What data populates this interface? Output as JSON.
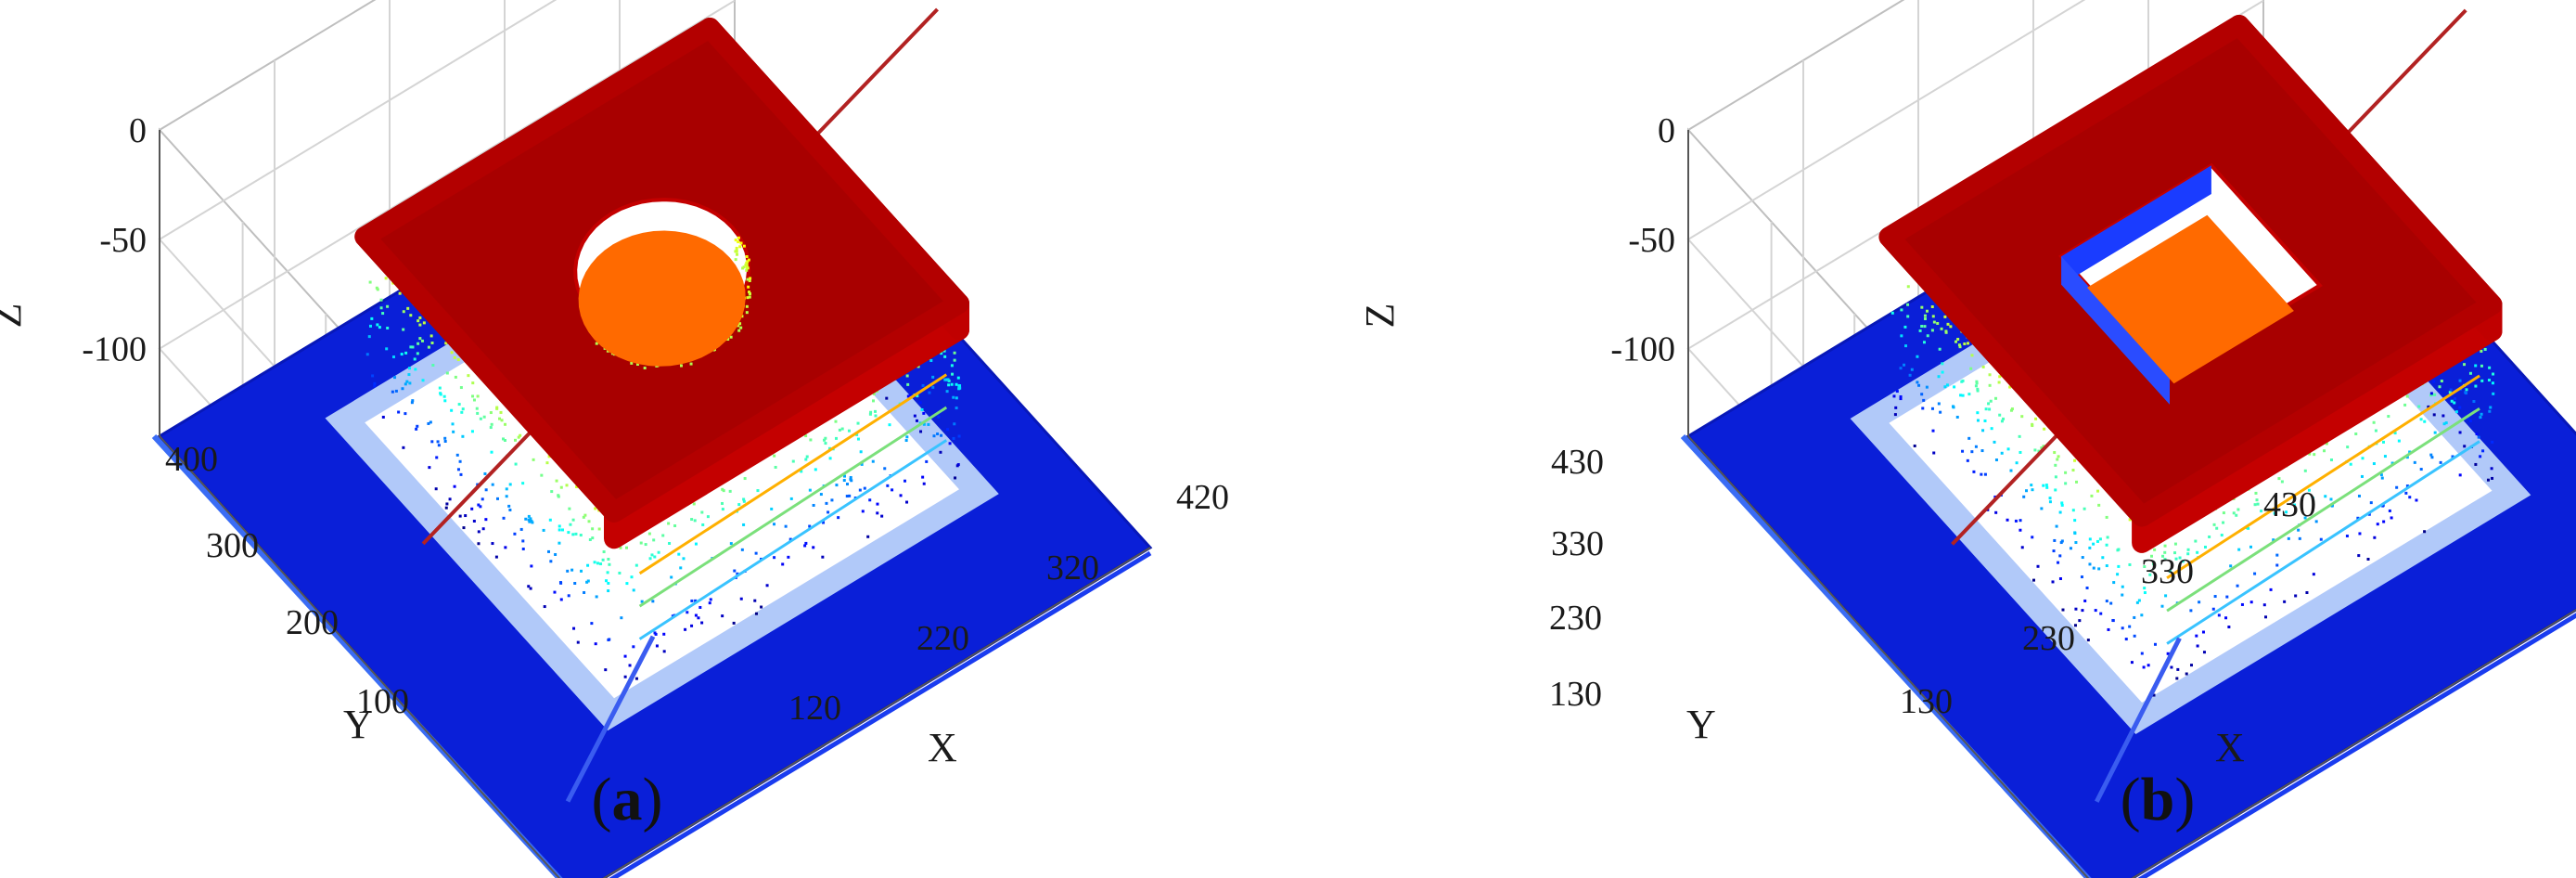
{
  "chart_data": [
    {
      "type": "scatter",
      "panel_label": "a",
      "title": "",
      "xlabel": "X",
      "ylabel": "Y",
      "zlabel": "Z",
      "x_ticks": [
        "120",
        "220",
        "320",
        "420"
      ],
      "y_ticks": [
        "100",
        "200",
        "300",
        "400"
      ],
      "z_ticks": [
        "0",
        "-50",
        "-100"
      ],
      "xlim": [
        0,
        450
      ],
      "ylim": [
        0,
        450
      ],
      "zlim": [
        -140,
        0
      ],
      "grid": true,
      "colormap": "jet (Z-coloured)",
      "object": {
        "shape": "square block with circular hole",
        "outer_x": [
          110,
          380
        ],
        "outer_y": [
          110,
          380
        ],
        "top_z": -55,
        "base_z": -140,
        "hole_center": [
          245,
          245
        ],
        "hole_radius": 55,
        "hole_floor_z": -68
      },
      "profile_line": {
        "y": 245,
        "z": -85
      }
    },
    {
      "type": "scatter",
      "panel_label": "b",
      "title": "",
      "xlabel": "X",
      "ylabel": "Y",
      "zlabel": "Z",
      "x_ticks": [
        "130",
        "230",
        "330",
        "430"
      ],
      "y_ticks": [
        "130",
        "230",
        "330",
        "430"
      ],
      "z_ticks": [
        "0",
        "-50",
        "-100"
      ],
      "xlim": [
        0,
        460
      ],
      "ylim": [
        0,
        460
      ],
      "zlim": [
        -140,
        0
      ],
      "grid": true,
      "colormap": "jet (Z-coloured)",
      "object": {
        "shape": "square block with square hole",
        "outer_x": [
          110,
          390
        ],
        "outer_y": [
          110,
          390
        ],
        "top_z": -55,
        "base_z": -140,
        "hole_x": [
          190,
          310
        ],
        "hole_y": [
          190,
          310
        ],
        "hole_floor_z": -68
      },
      "profile_line": {
        "y": 250,
        "z": -85
      }
    }
  ]
}
